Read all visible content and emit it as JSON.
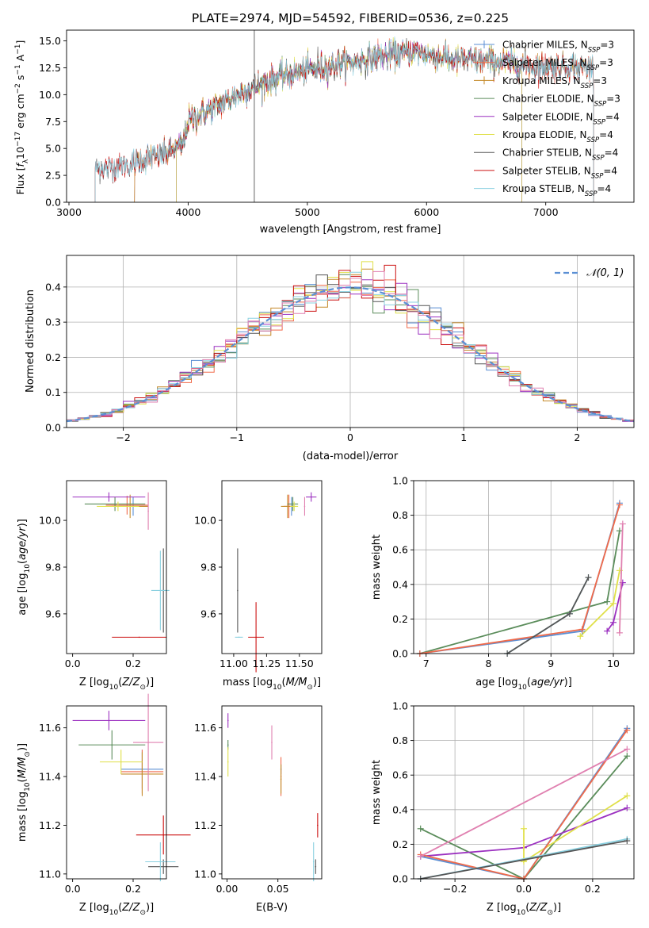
{
  "title": "PLATE=2974, MJD=54592, FIBERID=0536, z=0.225",
  "colors": {
    "Chabrier MILES": "#5b8fd4",
    "Salpeter MILES": "#f06a4a",
    "Kroupa MILES": "#c58a2a",
    "Chabrier ELODIE": "#5a8c5a",
    "Salpeter ELODIE": "#9b30c0",
    "Kroupa ELODIE": "#e0e04a",
    "Chabrier STELIB": "#555555",
    "Salpeter STELIB": "#cc1010",
    "Kroupa STELIB": "#8ad0e0",
    "pink": "#e080b0",
    "gauss": "#5b8fd4"
  },
  "chart_data": [
    {
      "type": "line",
      "id": "spectrum",
      "title": "PLATE=2974, MJD=54592, FIBERID=0536, z=0.225",
      "xlabel": "wavelength [Angstrom, rest frame]",
      "ylabel": "Flux [f_λ 10^-17 erg cm^-2 s^-1 A^-1]",
      "xlim": [
        2980,
        7740
      ],
      "ylim": [
        0,
        16
      ],
      "xticks": [
        3000,
        4000,
        5000,
        6000,
        7000
      ],
      "yticks": [
        0.0,
        2.5,
        5.0,
        7.5,
        10.0,
        12.5,
        15.0
      ],
      "legend": [
        {
          "label": "Chabrier MILES, N",
          "sub": "SSP",
          "suffix": "=3",
          "color": "Chabrier MILES"
        },
        {
          "label": "Salpeter MILES, N",
          "sub": "SSP",
          "suffix": "=3",
          "color": "Salpeter MILES"
        },
        {
          "label": "Kroupa MILES, N",
          "sub": "SSP",
          "suffix": "=3",
          "color": "Kroupa MILES"
        },
        {
          "label": "Chabrier ELODIE, N",
          "sub": "SSP",
          "suffix": "=3",
          "color": "Chabrier ELODIE"
        },
        {
          "label": "Salpeter ELODIE, N",
          "sub": "SSP",
          "suffix": "=4",
          "color": "Salpeter ELODIE"
        },
        {
          "label": "Kroupa ELODIE, N",
          "sub": "SSP",
          "suffix": "=4",
          "color": "Kroupa ELODIE"
        },
        {
          "label": "Chabrier STELIB, N",
          "sub": "SSP",
          "suffix": "=4",
          "color": "Chabrier STELIB"
        },
        {
          "label": "Salpeter STELIB, N",
          "sub": "SSP",
          "suffix": "=4",
          "color": "Salpeter STELIB"
        },
        {
          "label": "Kroupa STELIB, N",
          "sub": "SSP",
          "suffix": "=4",
          "color": "Kroupa STELIB"
        }
      ],
      "continuum_x": [
        3220,
        3500,
        3800,
        3950,
        4000,
        4500,
        4800,
        5200,
        5600,
        5900,
        6200,
        6600,
        7000,
        7400
      ],
      "continuum_y": [
        3.0,
        3.5,
        4.5,
        5.2,
        7.5,
        10.5,
        11.8,
        12.7,
        13.5,
        14.0,
        13.3,
        13.0,
        12.6,
        12.6
      ]
    },
    {
      "type": "line",
      "id": "residuals",
      "xlabel": "(data-model)/error",
      "ylabel": "Normed distribution",
      "xlim": [
        -2.5,
        2.5
      ],
      "ylim": [
        0,
        0.49
      ],
      "xticks": [
        -2,
        -1,
        0,
        1,
        2
      ],
      "yticks": [
        0.0,
        0.1,
        0.2,
        0.3,
        0.4
      ],
      "grid": true,
      "legend": "𝒩(0, 1)",
      "legend_placement": "top-right"
    },
    {
      "type": "scatter",
      "id": "age-vs-Z",
      "xlabel": "Z [log10(Z/Z⊙)]",
      "ylabel": "age  [log10(age/yr)]",
      "xlim": [
        -0.02,
        0.31
      ],
      "ylim": [
        9.43,
        10.17
      ],
      "xticks": [
        0.0,
        0.2
      ],
      "yticks": [
        9.6,
        9.8,
        10.0
      ],
      "points": [
        {
          "c": "Chabrier MILES",
          "x": 0.2,
          "y": 10.06,
          "xe": 0.05,
          "ye": 0.04
        },
        {
          "c": "Salpeter MILES",
          "x": 0.18,
          "y": 10.065,
          "xe": 0.07,
          "ye": 0.04
        },
        {
          "c": "Kroupa MILES",
          "x": 0.19,
          "y": 10.06,
          "xe": 0.06,
          "ye": 0.05
        },
        {
          "c": "Chabrier ELODIE",
          "x": 0.14,
          "y": 10.07,
          "xe": 0.1,
          "ye": 0.03
        },
        {
          "c": "Salpeter ELODIE",
          "x": 0.12,
          "y": 10.1,
          "xe": 0.12,
          "ye": 0.02
        },
        {
          "c": "Kroupa ELODIE",
          "x": 0.15,
          "y": 10.06,
          "xe": 0.07,
          "ye": 0.02
        },
        {
          "c": "Chabrier STELIB",
          "x": 0.3,
          "y": 9.7,
          "xe": 0.0,
          "ye": 0.18
        },
        {
          "c": "Salpeter STELIB",
          "x": 0.22,
          "y": 9.5,
          "xe": 0.09,
          "ye": 0.0
        },
        {
          "c": "Kroupa STELIB",
          "x": 0.29,
          "y": 9.7,
          "xe": 0.03,
          "ye": 0.17
        },
        {
          "c": "pink",
          "x": 0.25,
          "y": 10.04,
          "xe": 0.0,
          "ye": 0.08
        }
      ]
    },
    {
      "type": "scatter",
      "id": "age-vs-mass",
      "xlabel": "mass [log10(M/M⊙)]",
      "xlim": [
        10.91,
        11.67
      ],
      "ylim": [
        9.43,
        10.17
      ],
      "xticks": [
        11.0,
        11.25,
        11.5
      ],
      "yticks": [
        9.6,
        9.8,
        10.0
      ],
      "points": [
        {
          "c": "Chabrier MILES",
          "x": 11.44,
          "y": 10.06,
          "xe": 0.03,
          "ye": 0.04
        },
        {
          "c": "Salpeter MILES",
          "x": 11.42,
          "y": 10.06,
          "xe": 0.04,
          "ye": 0.05
        },
        {
          "c": "Kroupa MILES",
          "x": 11.41,
          "y": 10.06,
          "xe": 0.05,
          "ye": 0.05
        },
        {
          "c": "Chabrier ELODIE",
          "x": 11.45,
          "y": 10.07,
          "xe": 0.04,
          "ye": 0.03
        },
        {
          "c": "Salpeter ELODIE",
          "x": 11.59,
          "y": 10.1,
          "xe": 0.04,
          "ye": 0.02
        },
        {
          "c": "Kroupa ELODIE",
          "x": 11.46,
          "y": 10.06,
          "xe": 0.03,
          "ye": 0.02
        },
        {
          "c": "Chabrier STELIB",
          "x": 11.03,
          "y": 9.7,
          "xe": 0.0,
          "ye": 0.18
        },
        {
          "c": "Salpeter STELIB",
          "x": 11.17,
          "y": 9.5,
          "xe": 0.06,
          "ye": 0.15
        },
        {
          "c": "Kroupa STELIB",
          "x": 11.04,
          "y": 9.5,
          "xe": 0.03,
          "ye": 0.0
        },
        {
          "c": "pink",
          "x": 11.54,
          "y": 10.06,
          "xe": 0.0,
          "ye": 0.04
        }
      ]
    },
    {
      "type": "line",
      "id": "weight-vs-age",
      "xlabel": "age  [log10(age/yr)]",
      "ylabel": "mass weight",
      "xlim": [
        6.8,
        10.33
      ],
      "ylim": [
        0,
        1.0
      ],
      "xticks": [
        7,
        8,
        9,
        10
      ],
      "yticks": [
        0.0,
        0.2,
        0.4,
        0.6,
        0.8,
        1.0
      ],
      "grid": true,
      "series": [
        {
          "c": "Chabrier ELODIE",
          "x": [
            6.9,
            9.9,
            10.1
          ],
          "y": [
            0.0,
            0.3,
            0.71
          ]
        },
        {
          "c": "Salpeter ELODIE",
          "x": [
            9.9,
            10.0,
            10.15
          ],
          "y": [
            0.13,
            0.18,
            0.41
          ]
        },
        {
          "c": "Kroupa ELODIE",
          "x": [
            9.47,
            10.0,
            10.1
          ],
          "y": [
            0.1,
            0.29,
            0.48
          ]
        },
        {
          "c": "Chabrier MILES",
          "x": [
            6.9,
            9.5,
            10.1
          ],
          "y": [
            0.0,
            0.13,
            0.87
          ]
        },
        {
          "c": "Salpeter MILES",
          "x": [
            6.9,
            9.5,
            10.1
          ],
          "y": [
            0.0,
            0.14,
            0.86
          ]
        },
        {
          "c": "Kroupa STELIB",
          "x": [
            8.3,
            9.3,
            9.6
          ],
          "y": [
            0.0,
            0.23,
            0.44
          ]
        },
        {
          "c": "Chabrier STELIB",
          "x": [
            8.3,
            9.3,
            9.6
          ],
          "y": [
            0.0,
            0.23,
            0.44
          ]
        },
        {
          "c": "pink",
          "x": [
            10.1,
            10.15
          ],
          "y": [
            0.12,
            0.75
          ]
        }
      ]
    },
    {
      "type": "scatter",
      "id": "mass-vs-Z",
      "xlabel": "Z [log10(Z/Z⊙)]",
      "ylabel": "mass [log10(M/M⊙)]",
      "xlim": [
        -0.02,
        0.31
      ],
      "ylim": [
        10.98,
        11.69
      ],
      "xticks": [
        0.0,
        0.2
      ],
      "yticks": [
        11.0,
        11.2,
        11.4,
        11.6
      ],
      "points": [
        {
          "c": "Chabrier MILES",
          "x": 0.23,
          "y": 11.43,
          "xe": 0.07,
          "ye": 0.08
        },
        {
          "c": "Salpeter MILES",
          "x": 0.23,
          "y": 11.42,
          "xe": 0.07,
          "ye": 0.09
        },
        {
          "c": "Kroupa MILES",
          "x": 0.23,
          "y": 11.41,
          "xe": 0.07,
          "ye": 0.09
        },
        {
          "c": "Chabrier ELODIE",
          "x": 0.13,
          "y": 11.53,
          "xe": 0.11,
          "ye": 0.06
        },
        {
          "c": "Salpeter ELODIE",
          "x": 0.12,
          "y": 11.63,
          "xe": 0.12,
          "ye": 0.04
        },
        {
          "c": "Kroupa ELODIE",
          "x": 0.16,
          "y": 11.46,
          "xe": 0.07,
          "ye": 0.05
        },
        {
          "c": "Chabrier STELIB",
          "x": 0.3,
          "y": 11.03,
          "xe": 0.05,
          "ye": 0.03
        },
        {
          "c": "Salpeter STELIB",
          "x": 0.3,
          "y": 11.16,
          "xe": 0.09,
          "ye": 0.08
        },
        {
          "c": "Kroupa STELIB",
          "x": 0.29,
          "y": 11.05,
          "xe": 0.05,
          "ye": 0.08
        },
        {
          "c": "pink",
          "x": 0.25,
          "y": 11.54,
          "xe": 0.05,
          "ye": 0.2
        }
      ]
    },
    {
      "type": "scatter",
      "id": "mass-vs-EBV",
      "xlabel": "E(B-V)",
      "xlim": [
        -0.005,
        0.093
      ],
      "ylim": [
        10.98,
        11.69
      ],
      "xticks": [
        0.0,
        0.05
      ],
      "yticks": [
        11.0,
        11.2,
        11.4,
        11.6
      ],
      "points": [
        {
          "c": "Chabrier MILES",
          "x": 0.053,
          "y": 11.43,
          "xe": 0.0,
          "ye": 0.02
        },
        {
          "c": "Salpeter MILES",
          "x": 0.053,
          "y": 11.4,
          "xe": 0.0,
          "ye": 0.08
        },
        {
          "c": "Kroupa MILES",
          "x": 0.053,
          "y": 11.39,
          "xe": 0.0,
          "ye": 0.06
        },
        {
          "c": "Chabrier ELODIE",
          "x": 0.001,
          "y": 11.53,
          "xe": 0.0,
          "ye": 0.02
        },
        {
          "c": "Salpeter ELODIE",
          "x": 0.001,
          "y": 11.63,
          "xe": 0.0,
          "ye": 0.03
        },
        {
          "c": "Kroupa ELODIE",
          "x": 0.001,
          "y": 11.46,
          "xe": 0.0,
          "ye": 0.06
        },
        {
          "c": "Chabrier STELIB",
          "x": 0.087,
          "y": 11.03,
          "xe": 0.0,
          "ye": 0.03
        },
        {
          "c": "Salpeter STELIB",
          "x": 0.089,
          "y": 11.2,
          "xe": 0.0,
          "ye": 0.05
        },
        {
          "c": "Kroupa STELIB",
          "x": 0.085,
          "y": 11.05,
          "xe": 0.0,
          "ye": 0.08
        },
        {
          "c": "pink",
          "x": 0.044,
          "y": 11.54,
          "xe": 0.0,
          "ye": 0.07
        }
      ]
    },
    {
      "type": "line",
      "id": "weight-vs-Z",
      "xlabel": "Z [log10(Z/Z⊙)]",
      "ylabel": "mass weight",
      "xlim": [
        -0.32,
        0.32
      ],
      "ylim": [
        0,
        1.0
      ],
      "xticks": [
        -0.2,
        0.0,
        0.2
      ],
      "yticks": [
        0.0,
        0.2,
        0.4,
        0.6,
        0.8,
        1.0
      ],
      "grid": true,
      "series": [
        {
          "c": "Chabrier ELODIE",
          "x": [
            -0.3,
            0.0,
            0.3
          ],
          "y": [
            0.29,
            0.0,
            0.71
          ]
        },
        {
          "c": "Salpeter ELODIE",
          "x": [
            -0.3,
            0.0,
            0.3
          ],
          "y": [
            0.13,
            0.18,
            0.41
          ]
        },
        {
          "c": "Kroupa ELODIE",
          "x": [
            0.0,
            0.0,
            0.3
          ],
          "y": [
            0.29,
            0.1,
            0.48
          ]
        },
        {
          "c": "Chabrier MILES",
          "x": [
            -0.3,
            0.0,
            0.3
          ],
          "y": [
            0.13,
            0.0,
            0.87
          ]
        },
        {
          "c": "Salpeter MILES",
          "x": [
            -0.3,
            0.0,
            0.3
          ],
          "y": [
            0.14,
            0.0,
            0.86
          ]
        },
        {
          "c": "Kroupa STELIB",
          "x": [
            -0.3,
            0.3
          ],
          "y": [
            0.0,
            0.23
          ]
        },
        {
          "c": "Chabrier STELIB",
          "x": [
            -0.3,
            0.3
          ],
          "y": [
            0.0,
            0.22
          ]
        },
        {
          "c": "pink",
          "x": [
            -0.3,
            0.3
          ],
          "y": [
            0.13,
            0.75
          ]
        }
      ]
    }
  ]
}
